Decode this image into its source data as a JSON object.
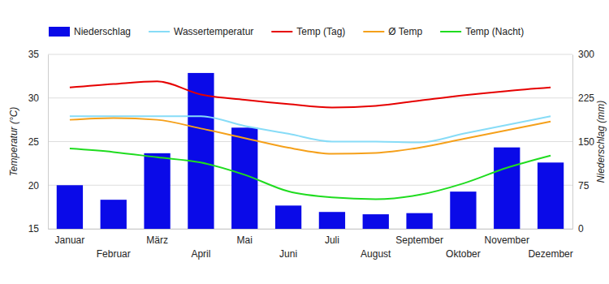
{
  "chart_data": {
    "type": "combo",
    "y_label": "Temperatur (°C)",
    "y2_label": "Niederschlag (mm)",
    "categories": [
      "Januar",
      "Februar",
      "März",
      "April",
      "Mai",
      "Juni",
      "Juli",
      "August",
      "September",
      "Oktober",
      "November",
      "Dezember"
    ],
    "ylim": [
      15,
      35
    ],
    "yticks": [
      15,
      20,
      25,
      30,
      35
    ],
    "y2lim": [
      0,
      300
    ],
    "y2ticks": [
      0,
      75,
      150,
      225,
      300
    ],
    "grid": true,
    "legend": "top",
    "series": [
      {
        "name": "Niederschlag",
        "type": "bar",
        "axis": "y2",
        "color": "#0a0ae8",
        "values": [
          75,
          50,
          130,
          268,
          174,
          40,
          29,
          25,
          27,
          64,
          140,
          114
        ]
      },
      {
        "name": "Wassertemperatur",
        "type": "line",
        "color": "#87dcf7",
        "values": [
          27.9,
          27.9,
          27.9,
          27.9,
          26.8,
          25.9,
          25.0,
          25.0,
          24.9,
          25.9,
          26.9,
          27.9
        ]
      },
      {
        "name": "Temp (Tag)",
        "type": "line",
        "color": "#e60000",
        "values": [
          31.2,
          31.6,
          31.9,
          30.4,
          29.8,
          29.3,
          28.9,
          29.1,
          29.7,
          30.3,
          30.8,
          31.2
        ]
      },
      {
        "name": "Ø Temp",
        "type": "line",
        "color": "#f5a01a",
        "values": [
          27.5,
          27.7,
          27.5,
          26.5,
          25.4,
          24.3,
          23.6,
          23.7,
          24.3,
          25.3,
          26.3,
          27.3
        ]
      },
      {
        "name": "Temp (Nacht)",
        "type": "line",
        "color": "#1fdc1f",
        "values": [
          24.2,
          23.8,
          23.2,
          22.6,
          21.2,
          19.3,
          18.6,
          18.4,
          18.9,
          20.2,
          22.0,
          23.4
        ]
      }
    ]
  }
}
